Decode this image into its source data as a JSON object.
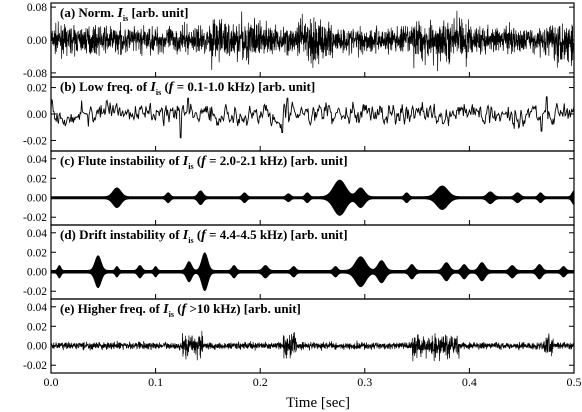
{
  "chart_data": [
    {
      "type": "line",
      "panel": "a",
      "title": "(a) Norm. I_is [arb. unit]",
      "title_parts": [
        "(a) Norm. ",
        "I",
        "is",
        " [arb. unit]"
      ],
      "yticks": [
        "0.08",
        "0.00",
        "-0.08"
      ],
      "ylim": [
        -0.09,
        0.09
      ],
      "signal": {
        "kind": "broadband",
        "base_amp": 0.035,
        "bursts": [
          [
            0.15,
            0.2
          ],
          [
            0.235,
            0.27
          ],
          [
            0.345,
            0.4
          ],
          [
            0.475,
            0.5
          ]
        ],
        "burst_amp": 0.065
      }
    },
    {
      "type": "line",
      "panel": "b",
      "title": "(b) Low freq. of I_is (f = 0.1-1.0 kHz) [arb. unit]",
      "title_parts": [
        "(b) Low freq. of ",
        "I",
        "is",
        " (",
        "f",
        " = 0.1-1.0 kHz) [arb. unit]"
      ],
      "yticks": [
        "0.02",
        "0.00",
        "-0.02"
      ],
      "ylim": [
        -0.028,
        0.028
      ],
      "signal": {
        "kind": "lowfreq",
        "base_amp": 0.006,
        "spikes": [
          [
            0.124,
            -0.018
          ],
          [
            0.131,
            0.012
          ],
          [
            0.221,
            -0.014
          ],
          [
            0.226,
            0.012
          ],
          [
            0.469,
            -0.013
          ],
          [
            0.474,
            0.013
          ],
          [
            0.355,
            0.009
          ]
        ]
      }
    },
    {
      "type": "area",
      "panel": "c",
      "title": "(c) Flute instability of I_is (f = 2.0-2.1 kHz) [arb. unit]",
      "title_parts": [
        "(c) Flute instability of ",
        "I",
        "is",
        " (",
        "f",
        " = 2.0-2.1 kHz) [arb. unit]"
      ],
      "yticks": [
        "0.04",
        "0.02",
        "0.00",
        "-0.02"
      ],
      "ylim": [
        -0.028,
        0.048
      ],
      "envelope": {
        "base": 0.0012,
        "bursts": [
          [
            0.063,
            0.008,
            0.009
          ],
          [
            0.112,
            0.004,
            0.004
          ],
          [
            0.143,
            0.005,
            0.006
          ],
          [
            0.185,
            0.004,
            0.004
          ],
          [
            0.227,
            0.004,
            0.003
          ],
          [
            0.245,
            0.004,
            0.004
          ],
          [
            0.276,
            0.012,
            0.017
          ],
          [
            0.296,
            0.008,
            0.009
          ],
          [
            0.34,
            0.004,
            0.004
          ],
          [
            0.374,
            0.011,
            0.011
          ],
          [
            0.42,
            0.006,
            0.005
          ],
          [
            0.446,
            0.005,
            0.004
          ],
          [
            0.468,
            0.004,
            0.004
          ],
          [
            0.5,
            0.004,
            0.006
          ]
        ]
      }
    },
    {
      "type": "area",
      "panel": "d",
      "title": "(d) Drift instability of I_is (f = 4.4-4.5 kHz) [arb. unit]",
      "title_parts": [
        "(d) Drift instability of ",
        "I",
        "is",
        " (",
        "f",
        " = 4.4-4.5 kHz) [arb. unit]"
      ],
      "yticks": [
        "0.04",
        "0.02",
        "0.00",
        "-0.02"
      ],
      "ylim": [
        -0.028,
        0.048
      ],
      "envelope": {
        "base": 0.0015,
        "bursts": [
          [
            0.008,
            0.003,
            0.005
          ],
          [
            0.045,
            0.006,
            0.015
          ],
          [
            0.063,
            0.003,
            0.004
          ],
          [
            0.085,
            0.004,
            0.005
          ],
          [
            0.1,
            0.003,
            0.004
          ],
          [
            0.132,
            0.005,
            0.009
          ],
          [
            0.147,
            0.006,
            0.018
          ],
          [
            0.175,
            0.004,
            0.005
          ],
          [
            0.205,
            0.005,
            0.005
          ],
          [
            0.232,
            0.004,
            0.004
          ],
          [
            0.272,
            0.004,
            0.004
          ],
          [
            0.296,
            0.01,
            0.014
          ],
          [
            0.316,
            0.007,
            0.01
          ],
          [
            0.345,
            0.005,
            0.006
          ],
          [
            0.378,
            0.006,
            0.008
          ],
          [
            0.395,
            0.005,
            0.006
          ],
          [
            0.412,
            0.006,
            0.008
          ],
          [
            0.441,
            0.005,
            0.005
          ],
          [
            0.467,
            0.005,
            0.006
          ],
          [
            0.49,
            0.004,
            0.004
          ]
        ]
      }
    },
    {
      "type": "line",
      "panel": "e",
      "title": "(e) Higher freq. of I_is (f >10 kHz) [arb. unit]",
      "title_parts": [
        "(e) Higher freq. of ",
        "I",
        "is",
        " (",
        "f",
        " >10 kHz) [arb. unit]"
      ],
      "yticks": [
        "0.04",
        "0.02",
        "0.00",
        "-0.02"
      ],
      "ylim": [
        -0.028,
        0.048
      ],
      "signal": {
        "kind": "broadband",
        "base_amp": 0.004,
        "bursts": [
          [
            0.125,
            0.145
          ],
          [
            0.222,
            0.235
          ],
          [
            0.345,
            0.39
          ],
          [
            0.47,
            0.48
          ]
        ],
        "burst_amp": 0.016
      }
    }
  ],
  "x_axis": {
    "xlim": [
      0.0,
      0.5
    ],
    "ticks": [
      "0.0",
      "0.1",
      "0.2",
      "0.3",
      "0.4",
      "0.5"
    ],
    "label": "Time [sec]"
  }
}
